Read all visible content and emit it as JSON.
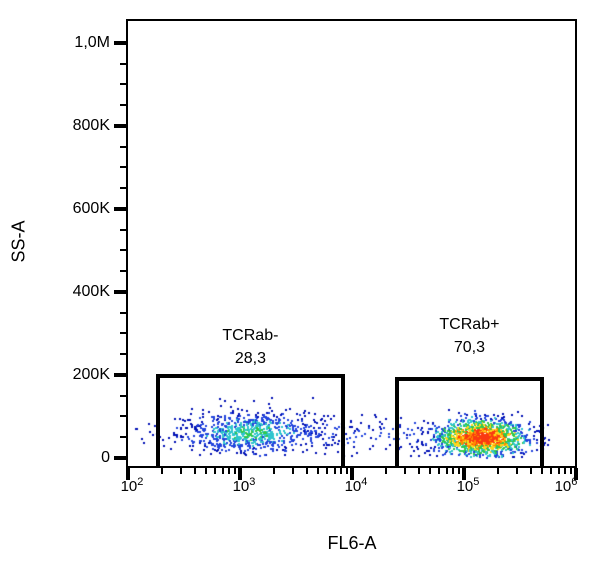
{
  "chart_data": {
    "type": "scatter",
    "subtype": "flow-cytometry-density-dot-plot",
    "title": "",
    "xlabel": "FL6-A",
    "ylabel": "SS-A",
    "x_scale": "log10",
    "x_range_log10": [
      2,
      6
    ],
    "x_ticks": [
      {
        "base": "10",
        "exp": "2"
      },
      {
        "base": "10",
        "exp": "3"
      },
      {
        "base": "10",
        "exp": "4"
      },
      {
        "base": "10",
        "exp": "5"
      },
      {
        "base": "10",
        "exp": "6"
      }
    ],
    "x_minor_mantissas": [
      2,
      3,
      4,
      5,
      6,
      7,
      8,
      9
    ],
    "y_scale": "linear",
    "y_range": [
      -21700,
      1053000
    ],
    "y_ticks": [
      {
        "value": 0,
        "label": "0"
      },
      {
        "value": 200000,
        "label": "200K"
      },
      {
        "value": 400000,
        "label": "400K"
      },
      {
        "value": 600000,
        "label": "600K"
      },
      {
        "value": 800000,
        "label": "800K"
      },
      {
        "value": 1000000,
        "label": "1,0M"
      }
    ],
    "y_minor_step": 50000,
    "grid": false,
    "legend": false,
    "gates": [
      {
        "name": "TCRab-",
        "percent_label": "28,3",
        "x_min": 185,
        "x_max": 8300,
        "y_min": 0,
        "y_max": 198000
      },
      {
        "name": "TCRab+",
        "percent_label": "70,3",
        "x_min": 25000,
        "x_max": 500000,
        "y_min": 0,
        "y_max": 190000
      }
    ],
    "palette": {
      "blue_dark": "#0010B4",
      "blue": "#2244DD",
      "cyan": "#2FC4CE",
      "green": "#2FC94A",
      "yellow": "#FFD71E",
      "orange": "#FF8A00",
      "red": "#FA3911"
    },
    "clusters": [
      {
        "name": "TCRab- population",
        "n": 780,
        "x_dist": "normal",
        "logx_mean": 3.09,
        "logx_sd": 0.31,
        "logx_clip": [
          2.02,
          4.35
        ],
        "y_mean": 60000,
        "y_sd": 25000,
        "y_clip": [
          800,
          160000
        ],
        "ramp": [
          {
            "r": 0.28,
            "color": "green"
          },
          {
            "r": 0.95,
            "color": "cyan"
          },
          {
            "r": 1.85,
            "color": "blue"
          },
          {
            "r": 99,
            "color": "blue_dark"
          }
        ]
      },
      {
        "name": "inter-gate scatter",
        "n": 110,
        "x_dist": "uniform",
        "logx_min": 3.55,
        "logx_max": 4.62,
        "y_mean": 55000,
        "y_sd": 24000,
        "y_clip": [
          800,
          140000
        ],
        "ramp": [
          {
            "r": 0.8,
            "color": "blue"
          },
          {
            "r": 99,
            "color": "blue_dark"
          }
        ]
      },
      {
        "name": "left strays",
        "n": 10,
        "x_dist": "uniform",
        "logx_min": 2.03,
        "logx_max": 2.5,
        "y_mean": 55000,
        "y_sd": 18000,
        "y_clip": [
          800,
          120000
        ],
        "ramp": [
          {
            "r": 99,
            "color": "blue_dark"
          }
        ]
      },
      {
        "name": "TCRab+ population",
        "n": 1550,
        "x_dist": "normal",
        "logx_mean": 5.16,
        "logx_sd": 0.21,
        "logx_clip": [
          4.1,
          5.78
        ],
        "y_mean": 49000,
        "y_sd": 22000,
        "y_clip": [
          800,
          160000
        ],
        "ramp": [
          {
            "r": 0.62,
            "color": "red"
          },
          {
            "r": 0.92,
            "color": "orange"
          },
          {
            "r": 1.22,
            "color": "yellow"
          },
          {
            "r": 1.55,
            "color": "green"
          },
          {
            "r": 1.95,
            "color": "cyan"
          },
          {
            "r": 2.45,
            "color": "blue"
          },
          {
            "r": 99,
            "color": "blue_dark"
          }
        ]
      }
    ]
  }
}
